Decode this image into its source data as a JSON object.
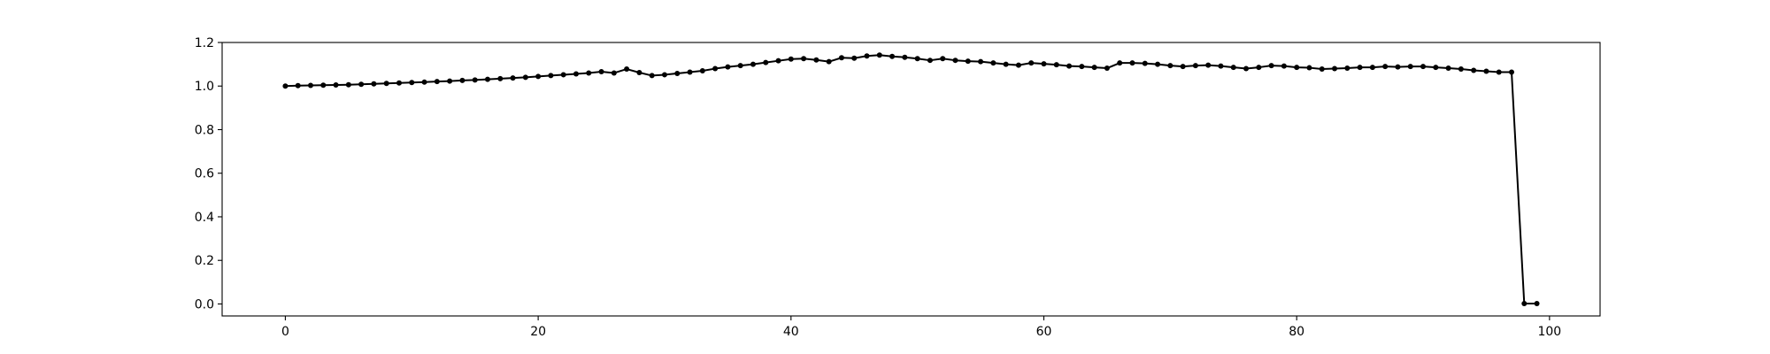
{
  "chart_data": {
    "type": "line",
    "title": "",
    "xlabel": "",
    "ylabel": "",
    "xlim": [
      -5,
      104
    ],
    "ylim": [
      -0.055,
      1.2
    ],
    "xticks": [
      0,
      20,
      40,
      60,
      80,
      100
    ],
    "xtick_labels": [
      "0",
      "20",
      "40",
      "60",
      "80",
      "100"
    ],
    "yticks": [
      0.0,
      0.2,
      0.4,
      0.6,
      0.8,
      1.0,
      1.2
    ],
    "ytick_labels": [
      "0.0",
      "0.2",
      "0.4",
      "0.6",
      "0.8",
      "1.0",
      "1.2"
    ],
    "grid": false,
    "legend": false,
    "color": "#000000",
    "marker": "circle",
    "series": [
      {
        "x": [
          0,
          1,
          2,
          3,
          4,
          5,
          6,
          7,
          8,
          9,
          10,
          11,
          12,
          13,
          14,
          15,
          16,
          17,
          18,
          19,
          20,
          21,
          22,
          23,
          24,
          25,
          26,
          27,
          28,
          29,
          30,
          31,
          32,
          33,
          34,
          35,
          36,
          37,
          38,
          39,
          40,
          41,
          42,
          43,
          44,
          45,
          46,
          47,
          48,
          49,
          50,
          51,
          52,
          53,
          54,
          55,
          56,
          57,
          58,
          59,
          60,
          61,
          62,
          63,
          64,
          65,
          66,
          67,
          68,
          69,
          70,
          71,
          72,
          73,
          74,
          75,
          76,
          77,
          78,
          79,
          80,
          81,
          82,
          83,
          84,
          85,
          86,
          87,
          88,
          89,
          90,
          91,
          92,
          93,
          94,
          95,
          96,
          97,
          98,
          99
        ],
        "values": [
          1.0,
          1.002,
          1.003,
          1.004,
          1.005,
          1.006,
          1.008,
          1.01,
          1.012,
          1.014,
          1.016,
          1.018,
          1.021,
          1.023,
          1.026,
          1.028,
          1.031,
          1.034,
          1.037,
          1.04,
          1.044,
          1.048,
          1.052,
          1.056,
          1.06,
          1.066,
          1.06,
          1.078,
          1.062,
          1.048,
          1.052,
          1.058,
          1.064,
          1.07,
          1.08,
          1.088,
          1.094,
          1.1,
          1.108,
          1.116,
          1.124,
          1.126,
          1.12,
          1.112,
          1.13,
          1.128,
          1.138,
          1.142,
          1.136,
          1.132,
          1.126,
          1.118,
          1.126,
          1.118,
          1.114,
          1.112,
          1.106,
          1.1,
          1.096,
          1.106,
          1.102,
          1.098,
          1.092,
          1.09,
          1.086,
          1.082,
          1.106,
          1.106,
          1.104,
          1.1,
          1.094,
          1.09,
          1.094,
          1.096,
          1.092,
          1.086,
          1.08,
          1.086,
          1.094,
          1.092,
          1.086,
          1.084,
          1.078,
          1.08,
          1.082,
          1.086,
          1.086,
          1.09,
          1.088,
          1.09,
          1.09,
          1.086,
          1.082,
          1.078,
          1.072,
          1.068,
          1.064,
          1.064,
          0.002,
          0.002
        ]
      }
    ]
  }
}
